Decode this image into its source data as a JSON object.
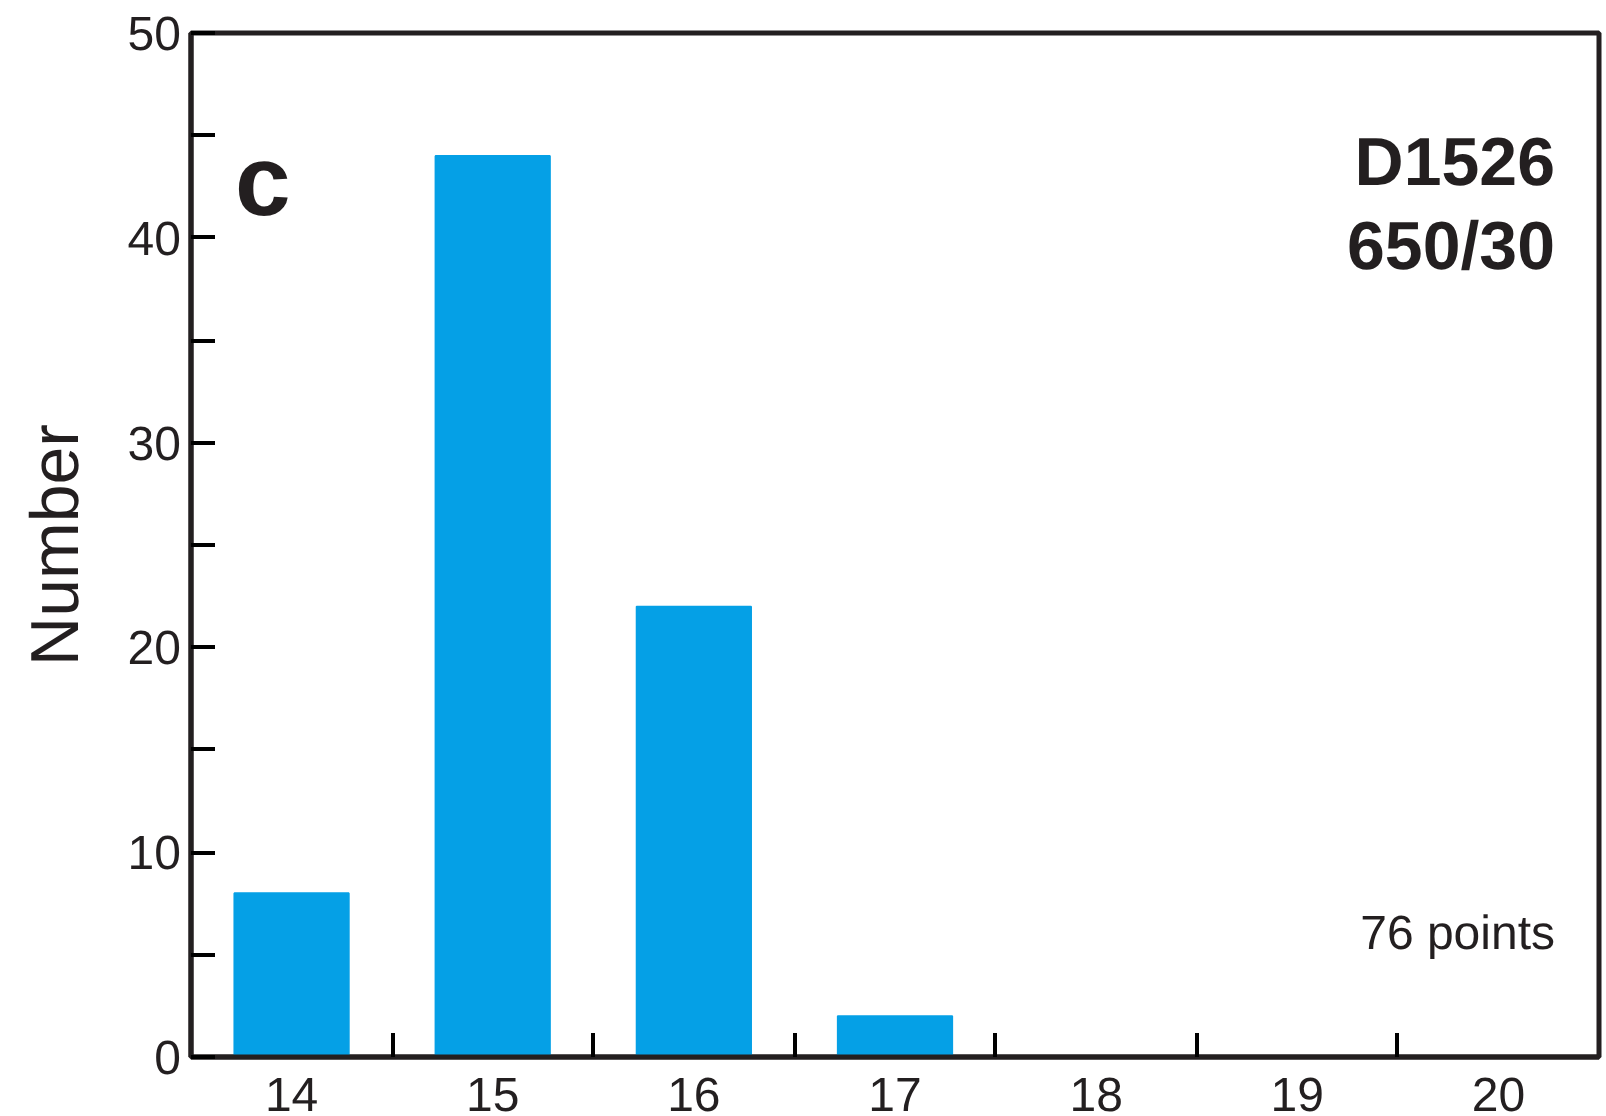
{
  "chart_data": {
    "type": "bar",
    "ylabel": "Number",
    "categories": [
      "14",
      "15",
      "16",
      "17",
      "18",
      "19",
      "20"
    ],
    "values": [
      8,
      44,
      22,
      2,
      0,
      0,
      0
    ],
    "color": "#05a0e6",
    "ylim": [
      0,
      50
    ],
    "yticks": [
      0,
      {
        "value": 5,
        "label": null
      },
      10,
      {
        "value": 15,
        "label": null
      },
      20,
      {
        "value": 25,
        "label": null
      },
      30,
      {
        "value": 35,
        "label": null
      },
      40,
      {
        "value": 45,
        "label": null
      },
      50
    ],
    "annotations": [
      "c",
      "D1526",
      "650/30",
      "76 points"
    ],
    "grid": false
  }
}
